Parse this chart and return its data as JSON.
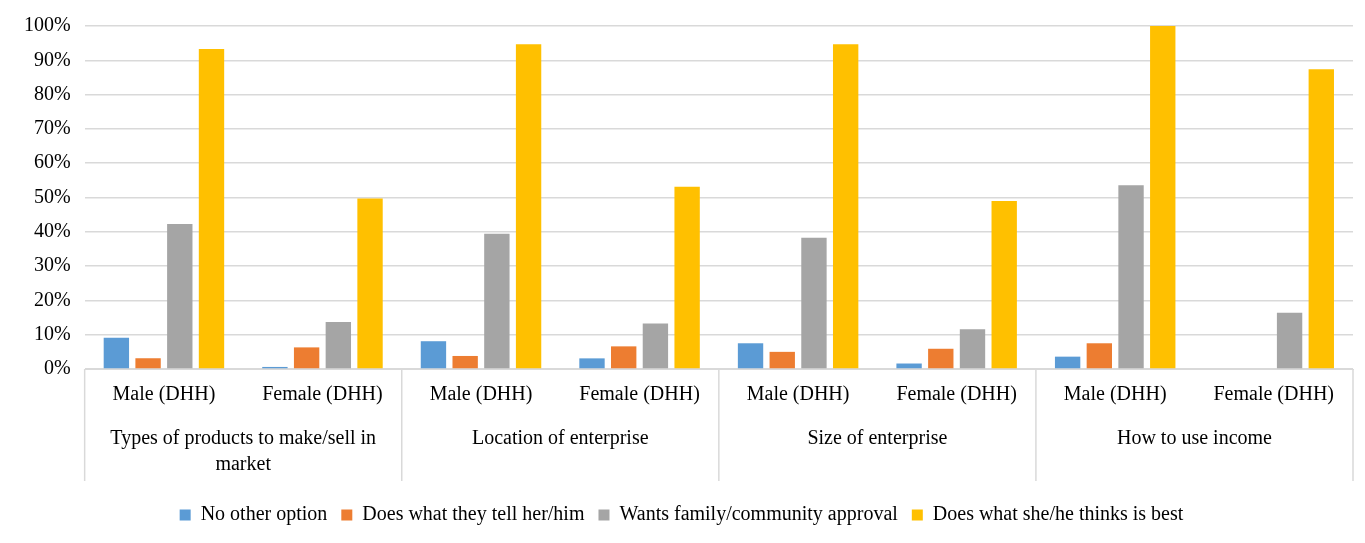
{
  "chart_data": {
    "type": "bar",
    "categories": [
      "Male (DHH)",
      "Female (DHH)",
      "Male (DHH)",
      "Female (DHH)",
      "Male (DHH)",
      "Female (DHH)",
      "Male (DHH)",
      "Female (DHH)"
    ],
    "annotations": [
      "Types of products to make/sell in market",
      "Location of enterprise",
      "Size of enterprise",
      "How to use income"
    ],
    "series": [
      {
        "name": "No other option",
        "color": "#5b9bd5",
        "values": [
          9.1,
          0.6,
          8.1,
          3.1,
          7.5,
          1.6,
          3.6,
          0
        ]
      },
      {
        "name": "Does what they tell her/him",
        "color": "#ed7d31",
        "values": [
          3.1,
          6.3,
          3.8,
          6.6,
          5.0,
          5.9,
          7.5,
          0
        ]
      },
      {
        "name": "Wants family/community approval",
        "color": "#a5a5a5",
        "values": [
          42.3,
          13.7,
          39.4,
          13.3,
          38.3,
          11.6,
          53.6,
          16.4
        ]
      },
      {
        "name": "Does what she/he thinks is best",
        "color": "#ffc000",
        "values": [
          93.3,
          49.7,
          94.7,
          53.1,
          94.7,
          49.0,
          100,
          87.4
        ]
      }
    ],
    "ylim": [
      0,
      100
    ],
    "yticks": [
      {
        "value": 0,
        "label": "0%"
      },
      {
        "value": 10,
        "label": "10%"
      },
      {
        "value": 20,
        "label": "20%"
      },
      {
        "value": 30,
        "label": "30%"
      },
      {
        "value": 40,
        "label": "40%"
      },
      {
        "value": 50,
        "label": "50%"
      },
      {
        "value": 60,
        "label": "60%"
      },
      {
        "value": 70,
        "label": "70%"
      },
      {
        "value": 80,
        "label": "80%"
      },
      {
        "value": 90,
        "label": "90%"
      },
      {
        "value": 100,
        "label": "100%"
      }
    ],
    "grid": "y",
    "legend": "bottom"
  }
}
